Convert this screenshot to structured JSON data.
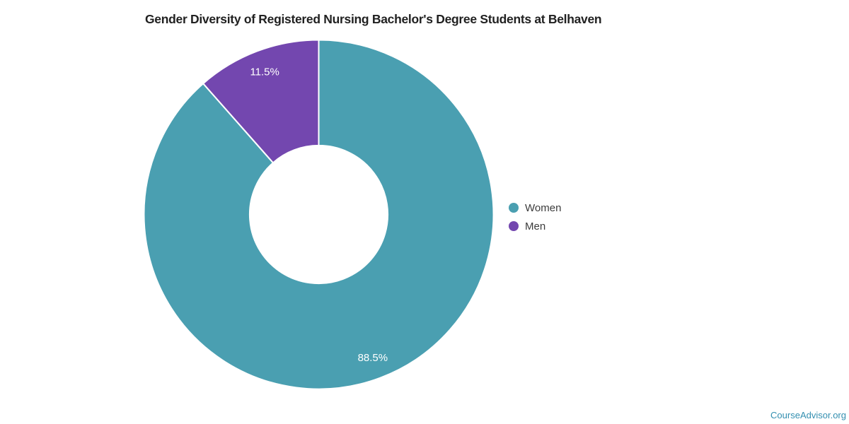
{
  "page": {
    "background": "#ffffff"
  },
  "chart_data": {
    "type": "pie",
    "subtype": "donut",
    "title": "Gender Diversity of Registered Nursing Bachelor's Degree Students at Belhaven",
    "categories": [
      "Women",
      "Men"
    ],
    "values": [
      88.5,
      11.5
    ],
    "slice_labels": [
      "88.5%",
      "11.5%"
    ],
    "colors": [
      "#4a9fb1",
      "#7347af"
    ],
    "slice_label_color": "#ffffff",
    "separator_color": "#ffffff",
    "start_angle_deg": 0,
    "direction": "clockwise",
    "donut_hole_ratio": 0.395,
    "legend_position": "right"
  },
  "footer": {
    "brand": "CourseAdvisor.org",
    "color": "#338fb0"
  }
}
